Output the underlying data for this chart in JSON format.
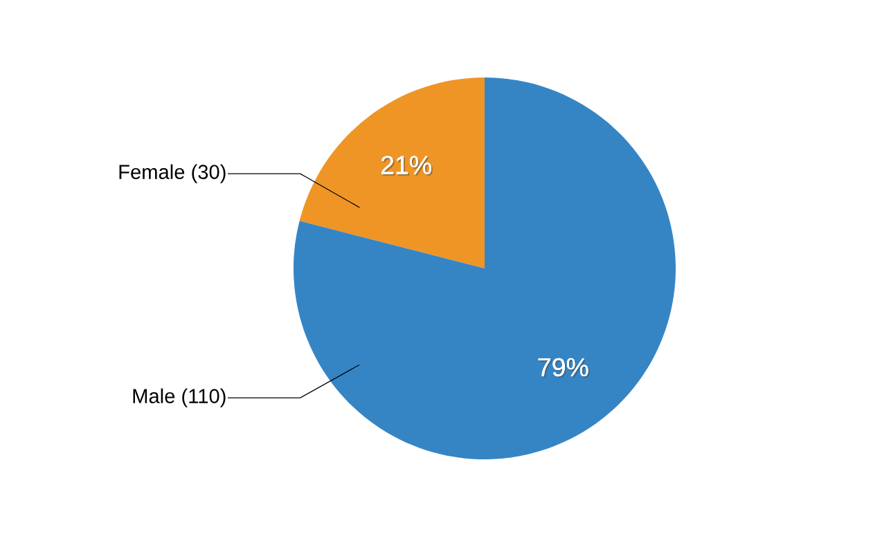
{
  "chart_data": {
    "type": "pie",
    "categories": [
      "Female (30)",
      "Male (110)"
    ],
    "values": [
      21,
      79
    ],
    "colors": [
      "#ef9526",
      "#3585c5"
    ],
    "value_labels": [
      "21%",
      "79%"
    ]
  }
}
